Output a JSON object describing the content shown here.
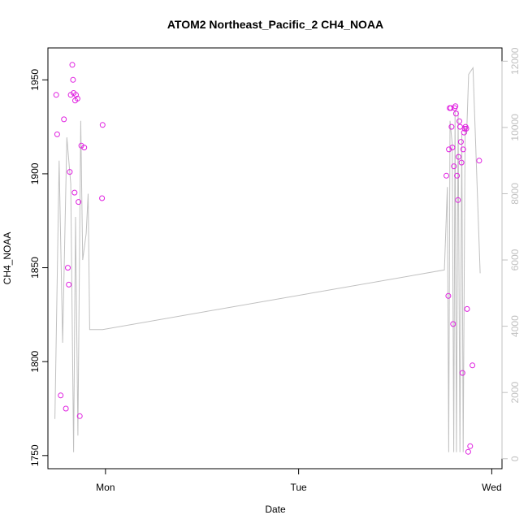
{
  "chart_data": {
    "type": "scatter",
    "title": "ATOM2 Northeast_Pacific_2 CH4_NOAA",
    "xlabel": "Date",
    "ylabel": "CH4_NOAA",
    "xlim": [
      -0.298,
      2.053
    ],
    "ylim": [
      1743,
      1967
    ],
    "y2lim": [
      -300,
      12400
    ],
    "x_ticks": [
      {
        "value": 0,
        "label": "Mon"
      },
      {
        "value": 1,
        "label": "Tue"
      },
      {
        "value": 2,
        "label": "Wed"
      }
    ],
    "y_ticks": [
      {
        "value": 1750,
        "label": "1750"
      },
      {
        "value": 1800,
        "label": "1800"
      },
      {
        "value": 1850,
        "label": "1850"
      },
      {
        "value": 1900,
        "label": "1900"
      },
      {
        "value": 1950,
        "label": "1950"
      }
    ],
    "y2_ticks": [
      {
        "value": 0,
        "label": "0"
      },
      {
        "value": 2000,
        "label": "2000"
      },
      {
        "value": 4000,
        "label": "4000"
      },
      {
        "value": 6000,
        "label": "6000"
      },
      {
        "value": 8000,
        "label": "8000"
      },
      {
        "value": 10000,
        "label": "10000"
      },
      {
        "value": 12000,
        "label": "12000"
      }
    ],
    "grid": false,
    "legend": "none",
    "colors": {
      "points": "#e020e0",
      "line": "#c0c0c0",
      "axis": "#000000",
      "axis2": "#c0c0c0"
    },
    "points": [
      {
        "x": -0.255,
        "y": 1942
      },
      {
        "x": -0.25,
        "y": 1921
      },
      {
        "x": -0.232,
        "y": 1782
      },
      {
        "x": -0.205,
        "y": 1775
      },
      {
        "x": -0.195,
        "y": 1850
      },
      {
        "x": -0.19,
        "y": 1841
      },
      {
        "x": -0.185,
        "y": 1901
      },
      {
        "x": -0.18,
        "y": 1942
      },
      {
        "x": -0.172,
        "y": 1958
      },
      {
        "x": -0.168,
        "y": 1950
      },
      {
        "x": -0.165,
        "y": 1943
      },
      {
        "x": -0.16,
        "y": 1890
      },
      {
        "x": -0.157,
        "y": 1939
      },
      {
        "x": -0.153,
        "y": 1942
      },
      {
        "x": -0.145,
        "y": 1940
      },
      {
        "x": -0.14,
        "y": 1885
      },
      {
        "x": -0.133,
        "y": 1771
      },
      {
        "x": -0.125,
        "y": 1915
      },
      {
        "x": -0.11,
        "y": 1914
      },
      {
        "x": -0.015,
        "y": 1926
      },
      {
        "x": -0.018,
        "y": 1887
      },
      {
        "x": -0.215,
        "y": 1929
      },
      {
        "x": 1.765,
        "y": 1899
      },
      {
        "x": 1.775,
        "y": 1835
      },
      {
        "x": 1.778,
        "y": 1913
      },
      {
        "x": 1.782,
        "y": 1935
      },
      {
        "x": 1.788,
        "y": 1935
      },
      {
        "x": 1.792,
        "y": 1925
      },
      {
        "x": 1.796,
        "y": 1914
      },
      {
        "x": 1.8,
        "y": 1820
      },
      {
        "x": 1.804,
        "y": 1904
      },
      {
        "x": 1.808,
        "y": 1935
      },
      {
        "x": 1.812,
        "y": 1936
      },
      {
        "x": 1.815,
        "y": 1932
      },
      {
        "x": 1.82,
        "y": 1899
      },
      {
        "x": 1.825,
        "y": 1886
      },
      {
        "x": 1.828,
        "y": 1909
      },
      {
        "x": 1.832,
        "y": 1928
      },
      {
        "x": 1.836,
        "y": 1925
      },
      {
        "x": 1.84,
        "y": 1917
      },
      {
        "x": 1.843,
        "y": 1906
      },
      {
        "x": 1.848,
        "y": 1794
      },
      {
        "x": 1.852,
        "y": 1913
      },
      {
        "x": 1.856,
        "y": 1922
      },
      {
        "x": 1.86,
        "y": 1924
      },
      {
        "x": 1.864,
        "y": 1925
      },
      {
        "x": 1.868,
        "y": 1924
      },
      {
        "x": 1.872,
        "y": 1828
      },
      {
        "x": 1.878,
        "y": 1752
      },
      {
        "x": 1.888,
        "y": 1755
      },
      {
        "x": 1.9,
        "y": 1798
      },
      {
        "x": 1.935,
        "y": 1907
      }
    ],
    "line_series_y2": [
      {
        "x": -0.262,
        "y": 1200
      },
      {
        "x": -0.24,
        "y": 9000
      },
      {
        "x": -0.222,
        "y": 3500
      },
      {
        "x": -0.2,
        "y": 9700
      },
      {
        "x": -0.18,
        "y": 8300
      },
      {
        "x": -0.165,
        "y": 200
      },
      {
        "x": -0.155,
        "y": 7300
      },
      {
        "x": -0.143,
        "y": 700
      },
      {
        "x": -0.128,
        "y": 10200
      },
      {
        "x": -0.118,
        "y": 6000
      },
      {
        "x": -0.1,
        "y": 6800
      },
      {
        "x": -0.09,
        "y": 8000
      },
      {
        "x": -0.082,
        "y": 3900
      },
      {
        "x": -0.015,
        "y": 3900
      },
      {
        "x": 1.755,
        "y": 5700
      },
      {
        "x": 1.77,
        "y": 8200
      },
      {
        "x": 1.777,
        "y": 200
      },
      {
        "x": 1.784,
        "y": 10200
      },
      {
        "x": 1.795,
        "y": 9500
      },
      {
        "x": 1.803,
        "y": 200
      },
      {
        "x": 1.81,
        "y": 10500
      },
      {
        "x": 1.817,
        "y": 200
      },
      {
        "x": 1.826,
        "y": 10500
      },
      {
        "x": 1.835,
        "y": 200
      },
      {
        "x": 1.845,
        "y": 9800
      },
      {
        "x": 1.852,
        "y": 200
      },
      {
        "x": 1.862,
        "y": 10000
      },
      {
        "x": 1.87,
        "y": 9800
      },
      {
        "x": 1.88,
        "y": 11600
      },
      {
        "x": 1.903,
        "y": 11800
      },
      {
        "x": 1.94,
        "y": 5600
      }
    ]
  }
}
